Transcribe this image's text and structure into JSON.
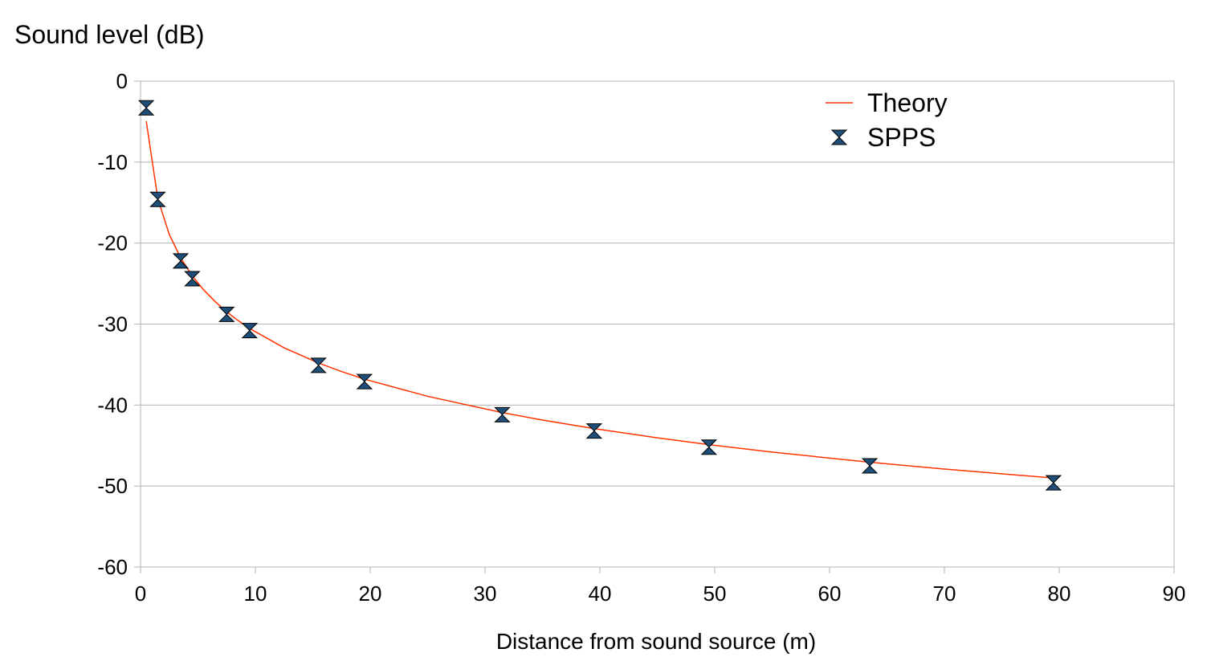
{
  "chart_data": {
    "type": "scatter",
    "xlabel": "Distance from sound source (m)",
    "ylabel": "Sound level (dB)",
    "xlim": [
      0,
      90
    ],
    "ylim": [
      -60,
      0
    ],
    "x_ticks": [
      0,
      10,
      20,
      30,
      40,
      50,
      60,
      70,
      80,
      90
    ],
    "y_ticks": [
      0,
      -10,
      -20,
      -30,
      -40,
      -50,
      -60
    ],
    "grid": "horizontal",
    "legend_position": "top-right",
    "series": [
      {
        "name": "Theory",
        "kind": "line",
        "color": "#ff3300",
        "x": [
          0.5,
          1.5,
          2.5,
          3.5,
          4.5,
          5.5,
          6.5,
          7.5,
          8.5,
          9.5,
          12.5,
          15.5,
          17.5,
          19.5,
          25,
          31.5,
          35,
          39.5,
          45,
          49.5,
          55,
          63.5,
          70,
          79.5
        ],
        "y": [
          -4.95,
          -14.49,
          -18.93,
          -21.85,
          -24.03,
          -25.78,
          -27.23,
          -28.48,
          -29.57,
          -30.54,
          -32.93,
          -34.8,
          -35.86,
          -36.8,
          -38.92,
          -40.93,
          -41.85,
          -42.9,
          -44.05,
          -44.89,
          -45.81,
          -47.06,
          -47.9,
          -49.01
        ]
      },
      {
        "name": "SPPS",
        "kind": "marker",
        "color": "#1f4e79",
        "x": [
          0.5,
          1.5,
          3.5,
          4.5,
          7.5,
          9.5,
          15.5,
          19.5,
          31.5,
          39.5,
          49.5,
          63.5,
          79.5
        ],
        "y": [
          -3.3,
          -14.6,
          -22.2,
          -24.4,
          -28.8,
          -30.8,
          -35.1,
          -37.1,
          -41.2,
          -43.2,
          -45.2,
          -47.5,
          -49.6
        ]
      }
    ]
  }
}
